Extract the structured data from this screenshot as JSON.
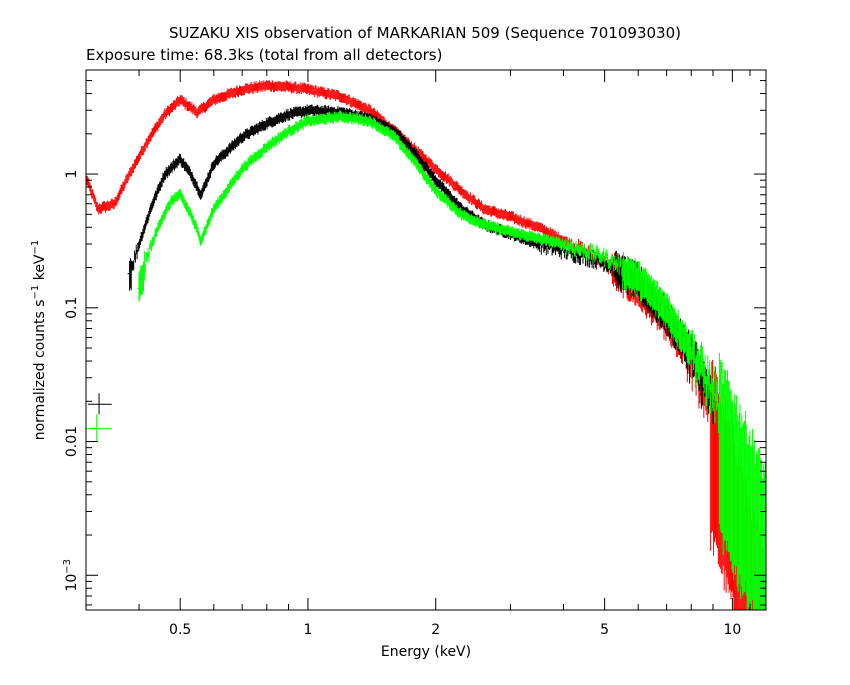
{
  "chart_data": {
    "type": "scatter",
    "title": "SUZAKU XIS observation of MARKARIAN 509 (Sequence 701093030)",
    "subtitle": "Exposure time: 68.3ks (total from all detectors)",
    "xlabel": "Energy (keV)",
    "ylabel": "normalized counts s",
    "ylabel_sup1": "−1",
    "ylabel_unit": " keV",
    "ylabel_sup2": "−1",
    "x_scale": "log",
    "y_scale": "log",
    "xlim": [
      0.3,
      12.0
    ],
    "ylim": [
      0.00055,
      6.0
    ],
    "grid": false,
    "x_ticks": [
      {
        "value": 0.5,
        "label": "0.5"
      },
      {
        "value": 1,
        "label": "1"
      },
      {
        "value": 2,
        "label": "2"
      },
      {
        "value": 5,
        "label": "5"
      },
      {
        "value": 10,
        "label": "10"
      }
    ],
    "y_ticks": [
      {
        "value": 0.001,
        "label": "10",
        "sup": "−3"
      },
      {
        "value": 0.01,
        "label": "0.01",
        "sup": ""
      },
      {
        "value": 0.1,
        "label": "0.1",
        "sup": ""
      },
      {
        "value": 1,
        "label": "1",
        "sup": ""
      }
    ],
    "series": [
      {
        "color": "#ff0000",
        "x": [
          0.3,
          0.32,
          0.35,
          0.38,
          0.42,
          0.46,
          0.5,
          0.55,
          0.6,
          0.7,
          0.8,
          0.9,
          1.0,
          1.2,
          1.4,
          1.6,
          1.8,
          2.0,
          2.3,
          2.6,
          3.0,
          3.5,
          4.0,
          5.0,
          6.0,
          7.0,
          8.0,
          9.0,
          10.0,
          11.0,
          12.0
        ],
        "y": [
          0.95,
          0.55,
          0.6,
          1.0,
          1.8,
          2.8,
          3.6,
          2.9,
          3.6,
          4.3,
          4.6,
          4.5,
          4.3,
          3.8,
          3.0,
          2.1,
          1.5,
          1.1,
          0.75,
          0.55,
          0.48,
          0.4,
          0.32,
          0.22,
          0.14,
          0.08,
          0.04,
          0.018,
          0.006,
          0.002,
          0.0006
        ]
      },
      {
        "color": "#000000",
        "x": [
          0.38,
          0.4,
          0.43,
          0.46,
          0.5,
          0.53,
          0.56,
          0.6,
          0.7,
          0.8,
          0.9,
          1.0,
          1.2,
          1.4,
          1.6,
          1.8,
          2.0,
          2.3,
          2.6,
          3.0,
          3.5,
          4.0,
          5.0,
          6.0,
          7.0,
          8.0,
          9.0
        ],
        "y": [
          0.18,
          0.3,
          0.6,
          1.0,
          1.3,
          1.0,
          0.7,
          1.2,
          1.9,
          2.4,
          2.8,
          3.0,
          2.9,
          2.6,
          2.1,
          1.4,
          0.9,
          0.55,
          0.42,
          0.36,
          0.3,
          0.27,
          0.22,
          0.16,
          0.09,
          0.045,
          0.02
        ]
      },
      {
        "color": "#00ff00",
        "x": [
          0.4,
          0.42,
          0.45,
          0.48,
          0.5,
          0.53,
          0.56,
          0.6,
          0.7,
          0.8,
          0.9,
          1.0,
          1.2,
          1.4,
          1.6,
          1.8,
          2.0,
          2.3,
          2.6,
          3.0,
          3.5,
          4.0,
          5.0,
          6.0,
          7.0,
          8.0,
          9.0,
          10.0,
          11.0,
          12.0
        ],
        "y": [
          0.14,
          0.25,
          0.45,
          0.65,
          0.7,
          0.5,
          0.32,
          0.55,
          1.1,
          1.6,
          2.1,
          2.5,
          2.7,
          2.5,
          1.9,
          1.2,
          0.75,
          0.5,
          0.42,
          0.37,
          0.33,
          0.3,
          0.24,
          0.17,
          0.1,
          0.05,
          0.025,
          0.012,
          0.006,
          0.003
        ]
      }
    ],
    "legend_markers": [
      {
        "color": "#000000",
        "x": [
          0.303,
          0.345
        ],
        "x_center": 0.322,
        "y": 0.019,
        "y_err": [
          0.016,
          0.023
        ]
      },
      {
        "color": "#00ff00",
        "x": [
          0.3,
          0.345
        ],
        "x_center": 0.318,
        "y": 0.0125,
        "y_err": [
          0.01,
          0.016
        ]
      }
    ]
  }
}
